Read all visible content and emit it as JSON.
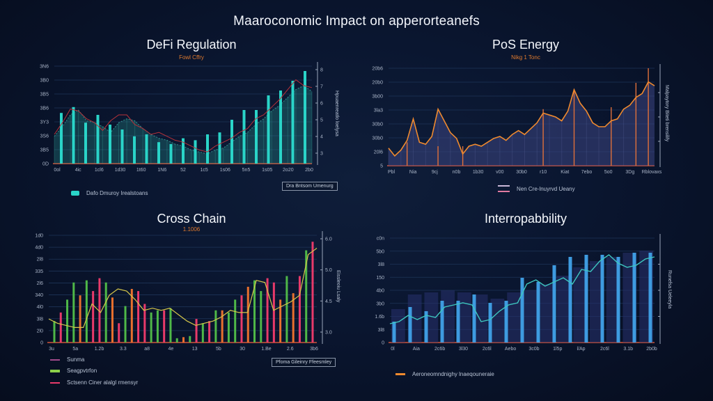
{
  "page": {
    "title": "Maaroconomic Impact on apperorteanefs"
  },
  "chart_data": [
    {
      "id": "defi",
      "type": "bar",
      "title": "DeFi Regulation",
      "subtitle": "Fowl Cffry",
      "accent": "#2ad4c8",
      "line_color": "#b8323a",
      "y_ticks_left": [
        "0D",
        "3B5",
        "3S6",
        "3Y3",
        "3B6",
        "3B5",
        "3B0",
        "3N6"
      ],
      "y_ticks_right": [
        "3",
        "4",
        "5",
        "6",
        "7",
        "8"
      ],
      "y_right_label": "Hpuaenreatlo loelysa",
      "x_ticks": [
        "0ol",
        "4ic",
        "1cl6",
        "1d30",
        "1t60",
        "1N6",
        "52",
        "1c5",
        "1s06",
        "5n5",
        "1s05",
        "2o20",
        "2b0"
      ],
      "ylim": [
        0,
        100
      ],
      "bars": [
        52,
        58,
        42,
        50,
        40,
        35,
        28,
        30,
        22,
        20,
        26,
        24,
        30,
        32,
        45,
        55,
        55,
        70,
        75,
        85,
        95
      ],
      "area": [
        28,
        38,
        50,
        55,
        44,
        42,
        38,
        32,
        42,
        46,
        44,
        36,
        30,
        26,
        24,
        20,
        18,
        14,
        12,
        10,
        14,
        16,
        22,
        28,
        32,
        40,
        46,
        54,
        60,
        68,
        76,
        80,
        74
      ],
      "line": [
        30,
        42,
        56,
        54,
        46,
        42,
        34,
        44,
        50,
        50,
        40,
        36,
        30,
        32,
        28,
        24,
        22,
        18,
        14,
        12,
        18,
        22,
        26,
        32,
        36,
        46,
        50,
        58,
        66,
        76,
        86,
        80,
        78
      ],
      "legend": [
        {
          "label": "Dafo Dmuroy Irealstoans",
          "color": "#2ad4c8"
        }
      ],
      "legend_box": "Dra Bntsom Umenurg"
    },
    {
      "id": "pos",
      "type": "area",
      "title": "PoS Energy",
      "subtitle": "Nikg 1 Tonc",
      "accent": "#f08a2e",
      "y_ticks_left": [
        "5",
        "20l6",
        "30b0",
        "30b0",
        "3la3",
        "3b00",
        "20b0",
        "20b6"
      ],
      "y_right_label": "Malpaytory Biteti brensilify",
      "x_ticks": [
        "Pbl",
        "Nia",
        "9cj",
        "n0b",
        "1b30",
        "v00",
        "30b0",
        "r10",
        "Kiat",
        "7ebo",
        "5o0",
        "3Dg",
        "Rblovaxs"
      ],
      "ylim": [
        0,
        100
      ],
      "values": [
        18,
        10,
        16,
        26,
        48,
        24,
        22,
        30,
        58,
        46,
        34,
        28,
        12,
        20,
        22,
        20,
        24,
        28,
        30,
        26,
        32,
        36,
        32,
        38,
        44,
        54,
        52,
        50,
        46,
        56,
        78,
        64,
        56,
        44,
        40,
        40,
        46,
        48,
        58,
        62,
        70,
        74,
        86,
        82
      ],
      "spikes": [
        {
          "i": 3,
          "v": 24
        },
        {
          "i": 8,
          "v": 20
        },
        {
          "i": 12,
          "v": 20
        },
        {
          "i": 25,
          "v": 58
        },
        {
          "i": 30,
          "v": 78
        },
        {
          "i": 36,
          "v": 60
        },
        {
          "i": 40,
          "v": 85
        },
        {
          "i": 42,
          "v": 100
        }
      ],
      "legend": [
        {
          "label": "Nen Cre-lnuyrvd Ueany",
          "color": "#c9b7d8"
        }
      ]
    },
    {
      "id": "cross",
      "type": "bar",
      "title": "Cross Chain",
      "subtitle": "1.1006",
      "y_ticks_left": [
        "0",
        "2l0",
        "3l8",
        "4l0",
        "340",
        "2l6",
        "335",
        "2l8",
        "4d0",
        "1d0"
      ],
      "y_ticks_right": [
        "3.0",
        "4.5",
        "5.0",
        "6.0"
      ],
      "y_right_label": "Eissleoiu Lsaly",
      "x_ticks": [
        "3u",
        "5a",
        "1.2b",
        "3.3",
        "a8",
        "4e",
        "13",
        "5b",
        "30",
        "1.Be",
        "2.6",
        "3b6"
      ],
      "ylim": [
        0,
        100
      ],
      "bars": [
        {
          "v": 20,
          "c": "#4fb848"
        },
        {
          "v": 28,
          "c": "#e83a6a"
        },
        {
          "v": 40,
          "c": "#4fb848"
        },
        {
          "v": 56,
          "c": "#4fb848"
        },
        {
          "v": 44,
          "c": "#e8702e"
        },
        {
          "v": 58,
          "c": "#4fb848"
        },
        {
          "v": 48,
          "c": "#e83a6a"
        },
        {
          "v": 60,
          "c": "#e83a6a"
        },
        {
          "v": 56,
          "c": "#4fb848"
        },
        {
          "v": 42,
          "c": "#e8702e"
        },
        {
          "v": 18,
          "c": "#e83a6a"
        },
        {
          "v": 34,
          "c": "#4fb848"
        },
        {
          "v": 50,
          "c": "#e8702e"
        },
        {
          "v": 48,
          "c": "#e83a6a"
        },
        {
          "v": 36,
          "c": "#e83a6a"
        },
        {
          "v": 28,
          "c": "#4fb848"
        },
        {
          "v": 30,
          "c": "#4fb848"
        },
        {
          "v": 30,
          "c": "#e83a6a"
        },
        {
          "v": 32,
          "c": "#4fb848"
        },
        {
          "v": 4,
          "c": "#4fb848"
        },
        {
          "v": 5,
          "c": "#e8702e"
        },
        {
          "v": 6,
          "c": "#4fb848"
        },
        {
          "v": 22,
          "c": "#e83a6a"
        },
        {
          "v": 18,
          "c": "#4fb848"
        },
        {
          "v": 20,
          "c": "#e83a6a"
        },
        {
          "v": 30,
          "c": "#4fb848"
        },
        {
          "v": 30,
          "c": "#e8702e"
        },
        {
          "v": 28,
          "c": "#4fb848"
        },
        {
          "v": 40,
          "c": "#4fb848"
        },
        {
          "v": 44,
          "c": "#e83a6a"
        },
        {
          "v": 52,
          "c": "#e8702e"
        },
        {
          "v": 58,
          "c": "#4fb848"
        },
        {
          "v": 48,
          "c": "#4fb848"
        },
        {
          "v": 60,
          "c": "#e83a6a"
        },
        {
          "v": 56,
          "c": "#e83a6a"
        },
        {
          "v": 40,
          "c": "#e8702e"
        },
        {
          "v": 62,
          "c": "#4fb848"
        },
        {
          "v": 46,
          "c": "#e8702e"
        },
        {
          "v": 62,
          "c": "#e83a6a"
        },
        {
          "v": 86,
          "c": "#4fb848"
        },
        {
          "v": 94,
          "c": "#e83a6a"
        }
      ],
      "line": [
        22,
        18,
        16,
        14,
        14,
        36,
        28,
        44,
        50,
        48,
        40,
        30,
        32,
        30,
        32,
        26,
        20,
        16,
        18,
        20,
        24,
        30,
        28,
        28,
        58,
        56,
        30,
        34,
        38,
        44,
        82,
        88
      ],
      "legend": [
        {
          "label": "Sunma",
          "color": "#a04a8a"
        },
        {
          "label": "Seagpvtrfon",
          "color": "#8ccf4a"
        },
        {
          "label": "Sctsenn Ciner alalgl rmensyr",
          "color": "#e83a6a"
        }
      ],
      "legend_box": "Pfoma Gileinry Ffeesmley"
    },
    {
      "id": "interop",
      "type": "bar",
      "title": "Interropabbility",
      "subtitle": "",
      "accent": "#3e9be0",
      "line_color": "#3ec8c0",
      "y_ticks_left": [
        "0",
        "3l8",
        "1.6b",
        "3b0",
        "4b0",
        "150",
        "3l8",
        "5b0",
        "c0n"
      ],
      "y_right_label": "Runefsa Ueleeyla",
      "x_ticks": [
        "0l",
        "Aia",
        "2c6b",
        "3l30",
        "2c6l",
        "Aebo",
        "3c0b",
        "1l5p",
        "l/Ap",
        "2c6l",
        "3.1b",
        "2b0b"
      ],
      "ylim": [
        0,
        100
      ],
      "bars": [
        20,
        34,
        30,
        40,
        40,
        46,
        38,
        40,
        62,
        58,
        74,
        82,
        84,
        84,
        82,
        86,
        86
      ],
      "bg_bars": [
        32,
        46,
        48,
        50,
        48,
        46,
        42,
        48,
        50,
        56,
        64,
        72,
        78,
        82,
        86,
        88
      ],
      "line": [
        18,
        20,
        26,
        22,
        26,
        24,
        34,
        36,
        38,
        36,
        20,
        22,
        30,
        36,
        38,
        56,
        60,
        54,
        58,
        62,
        56,
        70,
        68,
        78,
        84,
        76,
        72,
        74,
        80,
        82
      ],
      "legend": [
        {
          "label": "Aeroneomndnighy lnaeqouneraie",
          "color": "#f08a2e"
        }
      ]
    }
  ]
}
